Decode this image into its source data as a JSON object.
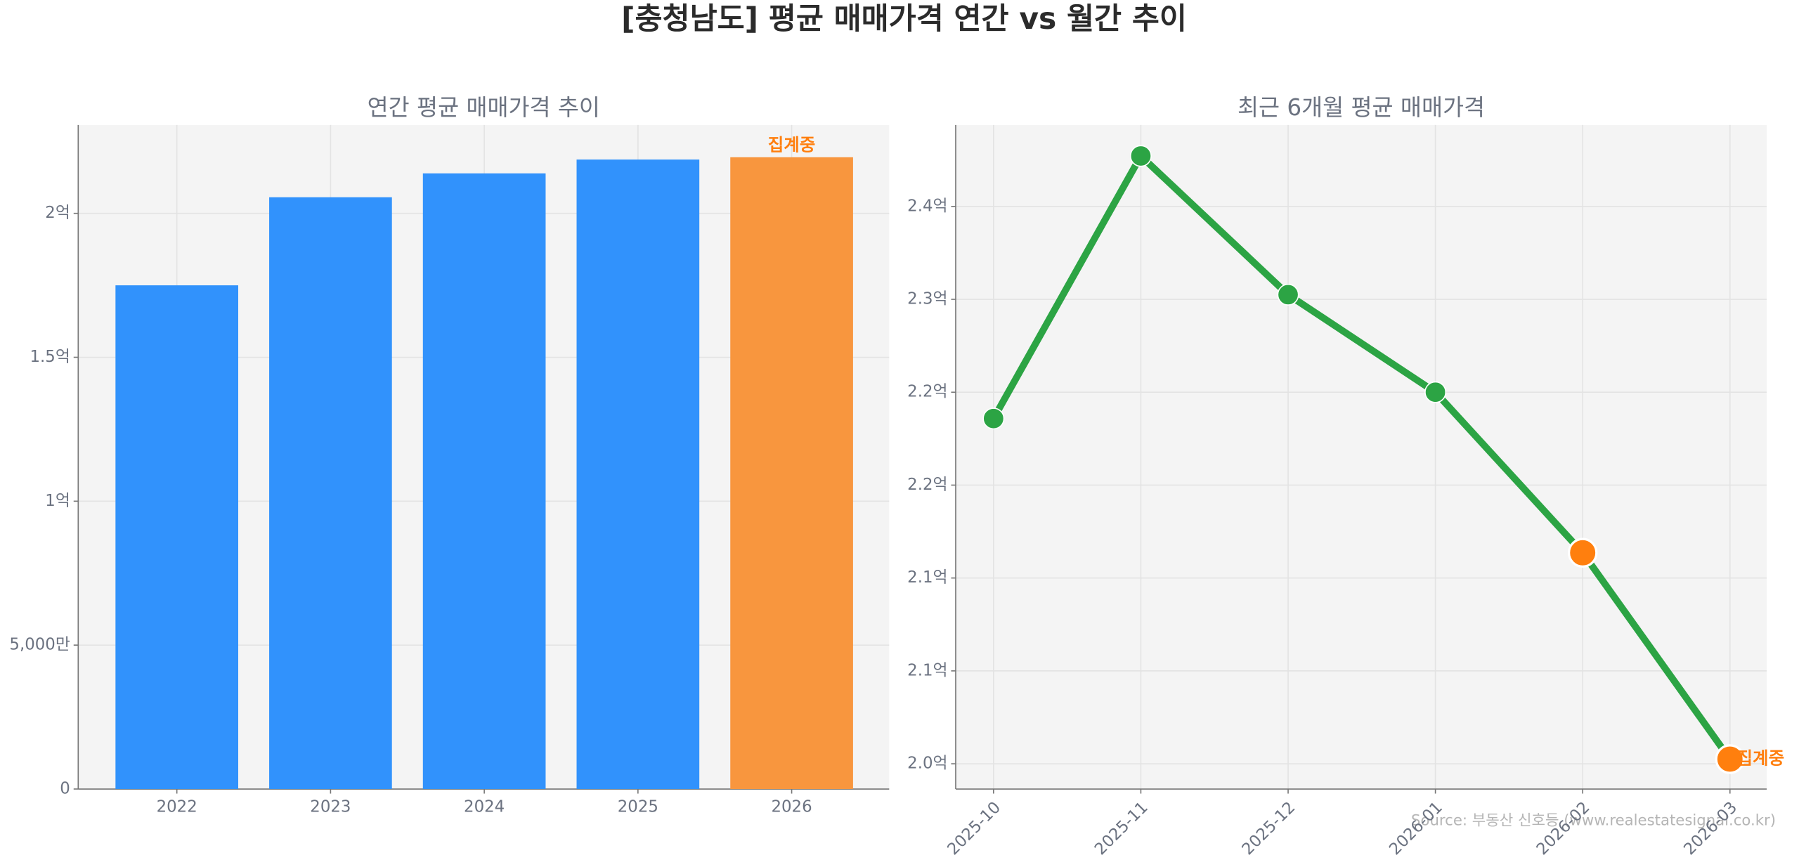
{
  "title": "[충청남도] 평균 매매가격 연간 vs 월간 추이",
  "source": "Source: 부동산 신호등 (www.realestatesignal.co.kr)",
  "chart_data": [
    {
      "type": "bar",
      "title": "연간 평균 매매가격 추이",
      "categories": [
        "2022",
        "2023",
        "2024",
        "2025",
        "2026"
      ],
      "values": [
        17500,
        20560,
        21390,
        21870,
        21950
      ],
      "colors": [
        "#3192fc",
        "#3192fc",
        "#3192fc",
        "#3192fc",
        "#f8963e"
      ],
      "annotation": "집계중",
      "annotation_index": 4,
      "ylim": [
        0,
        23070
      ],
      "yticks": [
        0,
        {
          "value": 5000,
          "label": "5,000만"
        },
        {
          "value": 10000,
          "label": "1억"
        },
        {
          "value": 15000,
          "label": "1.5억"
        },
        {
          "value": 20000,
          "label": "2억"
        }
      ],
      "grid": true
    },
    {
      "type": "line",
      "title": "최근 6개월 평균 매매가격",
      "categories": [
        "2025-10",
        "2025-11",
        "2025-12",
        "2026-01",
        "2026-02",
        "2026-03"
      ],
      "values": [
        22230,
        23926,
        23030,
        22400,
        21363,
        20030
      ],
      "color": "#2ca444",
      "marker_colors": [
        "#2ca444",
        "#2ca444",
        "#2ca444",
        "#2ca444",
        "#ff7f0e",
        "#ff7f0e"
      ],
      "annotation": "집계중",
      "annotation_index": 5,
      "ylim": [
        19837,
        24126
      ],
      "yticks": [
        {
          "value": 20000,
          "label": "2.0억"
        },
        {
          "value": 20600,
          "label": "2.1억"
        },
        {
          "value": 21200,
          "label": "2.1억"
        },
        {
          "value": 21800,
          "label": "2.2억"
        },
        {
          "value": 22400,
          "label": "2.2억"
        },
        {
          "value": 23000,
          "label": "2.3억"
        },
        {
          "value": 23600,
          "label": "2.4억"
        }
      ],
      "grid": true
    }
  ]
}
